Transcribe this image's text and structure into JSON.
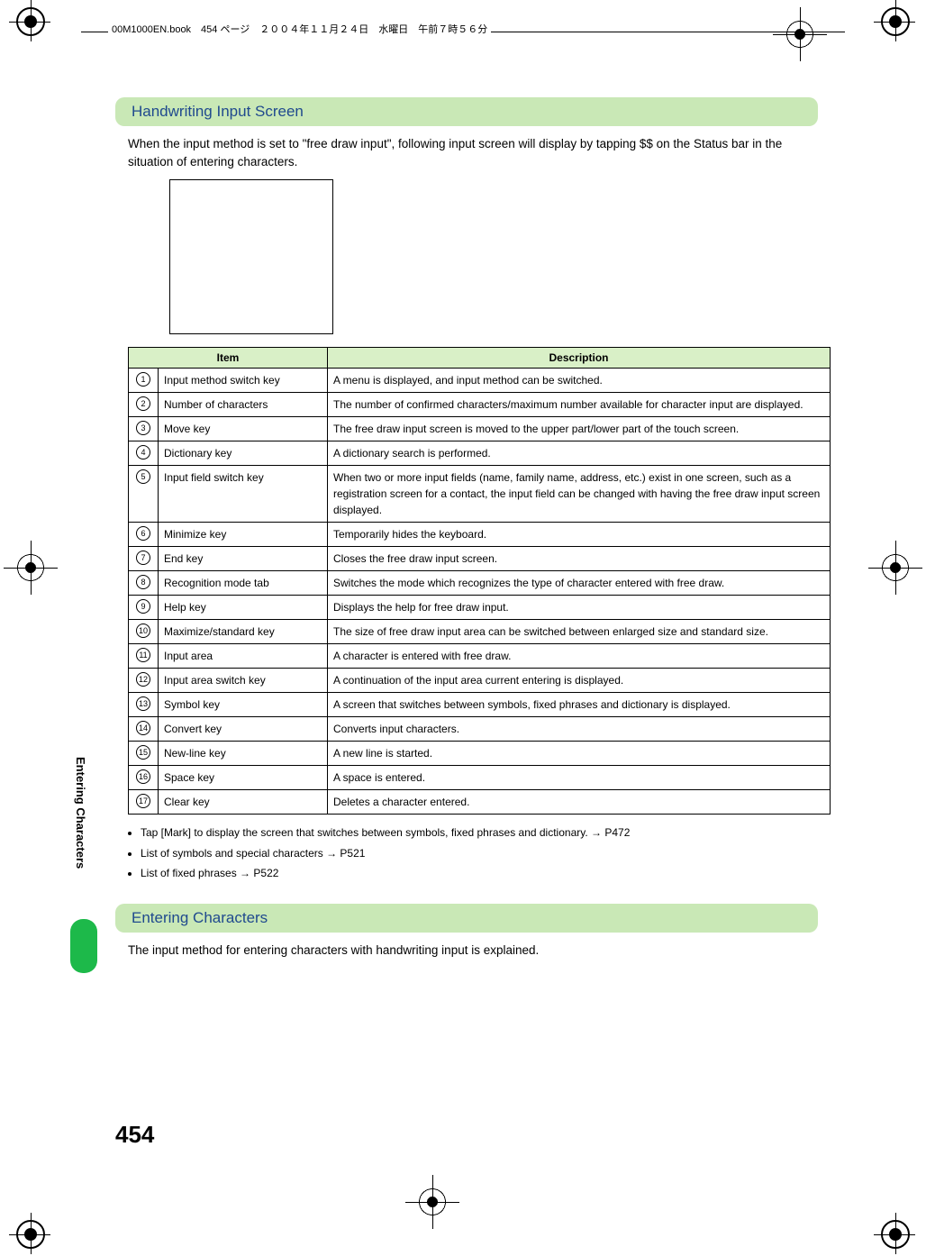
{
  "header": {
    "running_head": "00M1000EN.book　454 ページ　２００４年１１月２４日　水曜日　午前７時５６分"
  },
  "page_number": "454",
  "side_tab": "Entering Characters",
  "section1": {
    "title": "Handwriting Input Screen",
    "intro": "When the input method is set to \"free draw input\", following input screen will display by tapping $$ on the Status bar in the situation of entering characters."
  },
  "table": {
    "header_bg": "#d9f0c7",
    "col_item": "Item",
    "col_desc": "Description",
    "rows": [
      {
        "n": "1",
        "item": "Input method switch key",
        "desc": "A menu is displayed, and input method can be switched."
      },
      {
        "n": "2",
        "item": "Number of characters",
        "desc": "The number of confirmed characters/maximum number available for character input are displayed."
      },
      {
        "n": "3",
        "item": "Move key",
        "desc": "The free draw input screen is moved to the upper part/lower part of the touch screen."
      },
      {
        "n": "4",
        "item": "Dictionary key",
        "desc": "A dictionary search is performed."
      },
      {
        "n": "5",
        "item": "Input field switch key",
        "desc": "When two or more input fields (name, family name, address, etc.) exist in one screen, such as a registration screen for a contact, the input field can be changed with having the free draw input screen displayed."
      },
      {
        "n": "6",
        "item": "Minimize key",
        "desc": "Temporarily hides the keyboard."
      },
      {
        "n": "7",
        "item": "End key",
        "desc": "Closes the free draw input screen."
      },
      {
        "n": "8",
        "item": "Recognition mode tab",
        "desc": "Switches the mode which recognizes the type of character entered with free draw."
      },
      {
        "n": "9",
        "item": "Help key",
        "desc": "Displays the help for free draw input."
      },
      {
        "n": "10",
        "item": "Maximize/standard key",
        "desc": "The size of free draw input area can be switched between enlarged size and standard size."
      },
      {
        "n": "11",
        "item": "Input area",
        "desc": "A character is entered with free draw."
      },
      {
        "n": "12",
        "item": "Input area switch key",
        "desc": "A continuation of the input area current entering is displayed."
      },
      {
        "n": "13",
        "item": "Symbol key",
        "desc": "A screen that switches between symbols, fixed phrases and dictionary is displayed."
      },
      {
        "n": "14",
        "item": "Convert key",
        "desc": "Converts input characters."
      },
      {
        "n": "15",
        "item": "New-line key",
        "desc": "A new line is started."
      },
      {
        "n": "16",
        "item": "Space key",
        "desc": "A space is entered."
      },
      {
        "n": "17",
        "item": "Clear key",
        "desc": "Deletes a character entered."
      }
    ]
  },
  "notes": [
    "Tap [Mark] to display the screen that switches between symbols, fixed phrases and dictionary. → P472",
    "List of symbols and special characters → P521",
    "List of fixed phrases → P522"
  ],
  "section2": {
    "title": "Entering Characters",
    "intro": "The input method for entering characters with handwriting input is explained."
  }
}
